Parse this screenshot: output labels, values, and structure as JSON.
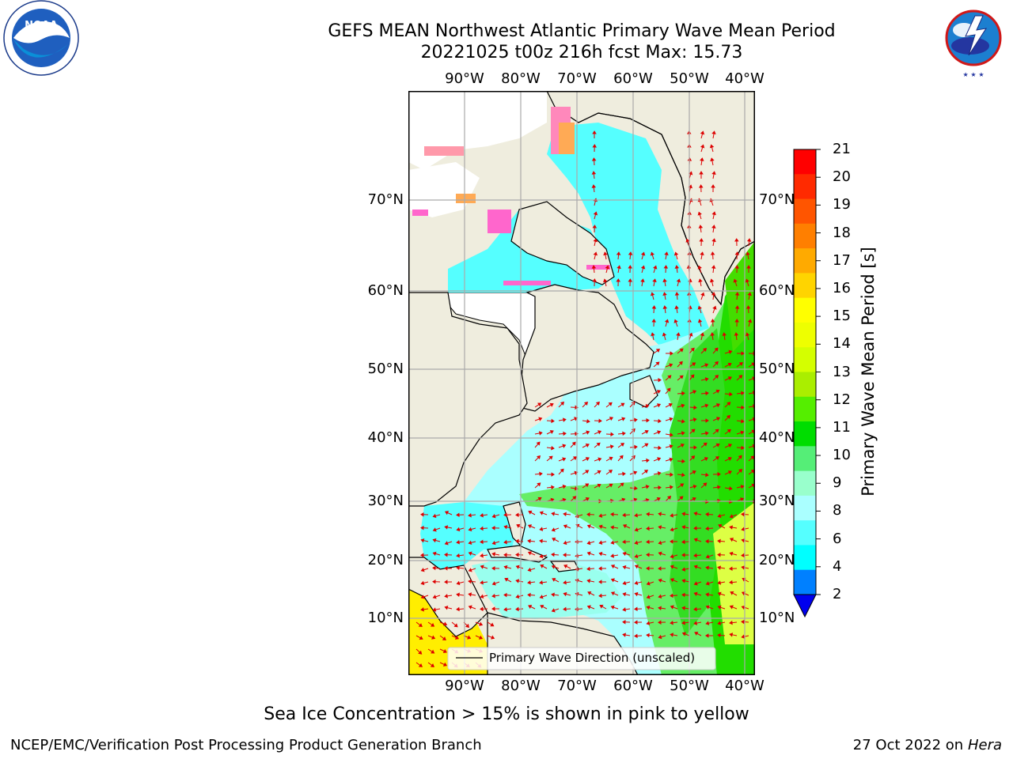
{
  "title": {
    "line1": "GEFS MEAN Northwest Atlantic Primary Wave Mean Period",
    "line2": "20221025 t00z 216h fcst   Max: 15.73"
  },
  "map": {
    "lon_labels": [
      "90°W",
      "80°W",
      "70°W",
      "60°W",
      "50°W",
      "40°W"
    ],
    "lat_labels": [
      "70°N",
      "60°N",
      "50°N",
      "40°N",
      "30°N",
      "20°N",
      "10°N"
    ],
    "legend_label": "Primary Wave Direction (unscaled)",
    "land_color": "#efedde",
    "ice_note": "Sea Ice Concentration > 15% is shown in pink to yellow"
  },
  "colorbar": {
    "label": "Primary Wave Mean Period [s]",
    "ticks": [
      "21",
      "20",
      "19",
      "18",
      "17",
      "16",
      "15",
      "14",
      "13",
      "12",
      "11",
      "10",
      "9",
      "8",
      "6",
      "4",
      "2"
    ],
    "colors": [
      "#ff0000",
      "#ff2a00",
      "#ff5500",
      "#ff7f00",
      "#ffaa00",
      "#ffd400",
      "#ffff00",
      "#eeff00",
      "#d4ff00",
      "#aaee00",
      "#55ee00",
      "#00dd00",
      "#55ee77",
      "#99ffcc",
      "#aaffff",
      "#55ffff",
      "#00ffff",
      "#0080ff"
    ],
    "extend_color": "#0000ee"
  },
  "footer": {
    "left": "NCEP/EMC/Verification Post Processing Product Generation Branch",
    "right_date": "27 Oct 2022 on ",
    "right_machine": "Hera"
  },
  "logos": {
    "noaa_text": "NOAA",
    "noaa_ring": "NATIONAL OCEANIC AND ATMOSPHERIC ADMINISTRATION · U.S. DEPARTMENT OF COMMERCE",
    "nws_ring": "NATIONAL WEATHER SERVICE"
  }
}
